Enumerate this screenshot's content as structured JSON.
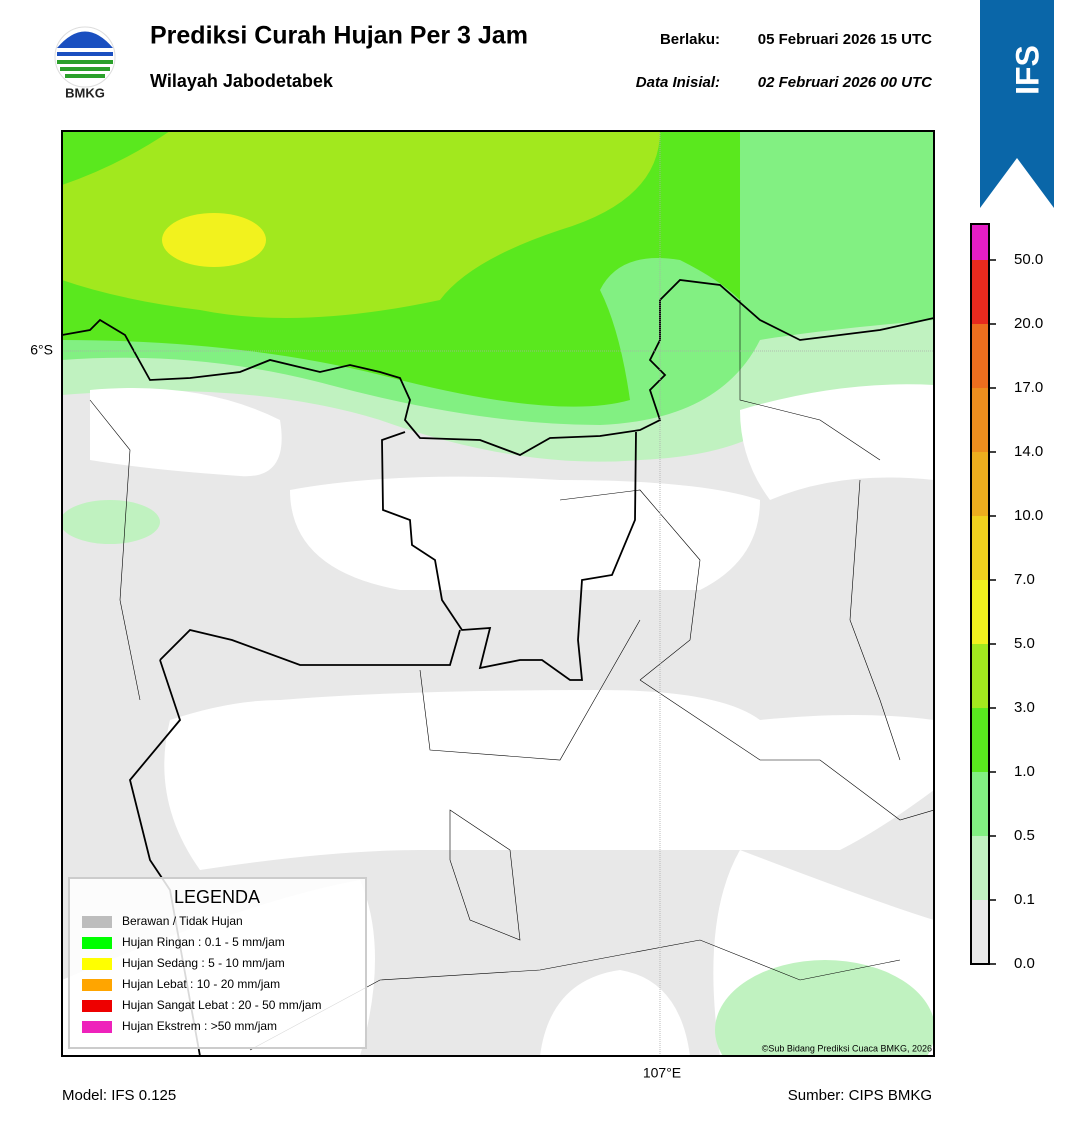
{
  "header": {
    "logo_text": "BMKG",
    "title": "Prediksi Curah Hujan Per 3 Jam",
    "subtitle": "Wilayah Jabodetabek",
    "valid_label": "Berlaku:",
    "valid_value": "05 Februari 2026 15 UTC",
    "init_label": "Data Inisial:",
    "init_value": "02 Februari 2026 00 UTC",
    "badge": "IFS"
  },
  "map": {
    "lat_label": "6°S",
    "lon_label": "107°E",
    "credit": "©Sub Bidang Prediksi Cuaca BMKG, 2026"
  },
  "legend": {
    "title": "LEGENDA",
    "items": [
      {
        "label": "Berawan / Tidak Hujan",
        "color": "#bdbdbd"
      },
      {
        "label": "Hujan Ringan : 0.1 - 5 mm/jam",
        "color": "#00ff00"
      },
      {
        "label": "Hujan Sedang : 5 - 10 mm/jam",
        "color": "#ffff00"
      },
      {
        "label": "Hujan Lebat : 10 - 20 mm/jam",
        "color": "#ffa500"
      },
      {
        "label": "Hujan Sangat Lebat : 20 - 50 mm/jam",
        "color": "#ee0000"
      },
      {
        "label": "Hujan Ekstrem : >50 mm/jam",
        "color": "#ee22bb"
      }
    ]
  },
  "colorbar": {
    "ticks": [
      "0.0",
      "0.1",
      "0.5",
      "1.0",
      "3.0",
      "5.0",
      "7.0",
      "10.0",
      "14.0",
      "17.0",
      "20.0",
      "50.0"
    ],
    "colors": [
      "#e8e8e8",
      "#c0f2c0",
      "#82f082",
      "#5ae81e",
      "#a2e81e",
      "#f2f21e",
      "#f2d21e",
      "#eeae1e",
      "#ee8e1e",
      "#ee6e1e",
      "#e82a1e",
      "#e41ec4"
    ]
  },
  "footer": {
    "model": "Model: IFS 0.125",
    "source": "Sumber: CIPS BMKG"
  }
}
